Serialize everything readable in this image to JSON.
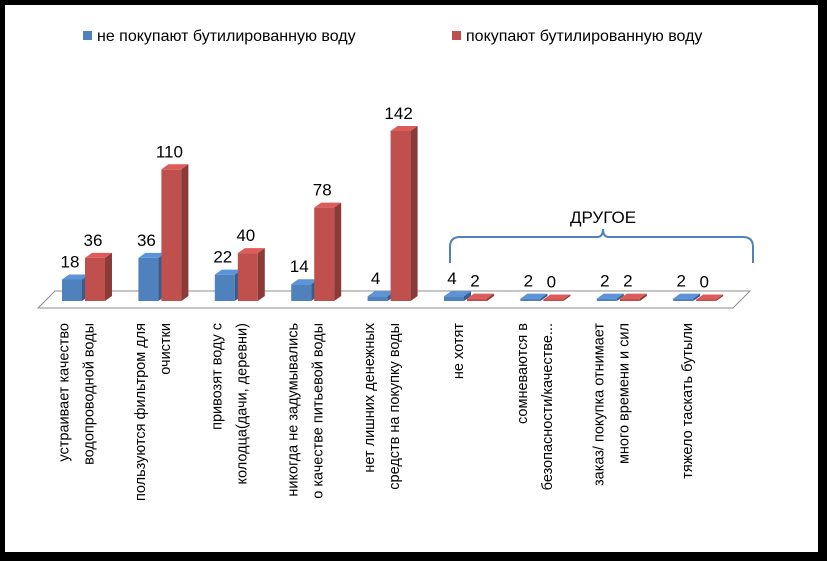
{
  "chart_data": {
    "type": "bar",
    "title": "",
    "xlabel": "",
    "ylabel": "",
    "categories": [
      [
        "устраивает качество",
        "водопроводной воды"
      ],
      [
        "пользуются фильтром для",
        "очистки"
      ],
      [
        "привозят воду с",
        "колодца(дачи, деревни)"
      ],
      [
        "никогда не задумывались",
        "о качестве питьевой воды"
      ],
      [
        "нет лишних денежных",
        "средств на покупку воды"
      ],
      [
        "не хотят"
      ],
      [
        "сомневаются в",
        "безопасности/качестве..."
      ],
      [
        "заказ/ покупка отнимает",
        "много времени и сил"
      ],
      [
        "тяжело таскать бутыли"
      ]
    ],
    "series": [
      {
        "name": "не покупают бутилированную воду",
        "color": "#4F81BD",
        "values": [
          18,
          36,
          22,
          14,
          4,
          4,
          2,
          2,
          2
        ]
      },
      {
        "name": "покупают бутилированную воду",
        "color": "#C0504D",
        "values": [
          36,
          110,
          40,
          78,
          142,
          2,
          0,
          2,
          0
        ]
      }
    ],
    "ylim": [
      0,
      142
    ],
    "grid": false,
    "legend": "top",
    "annotation": "ДРУГОЕ"
  }
}
